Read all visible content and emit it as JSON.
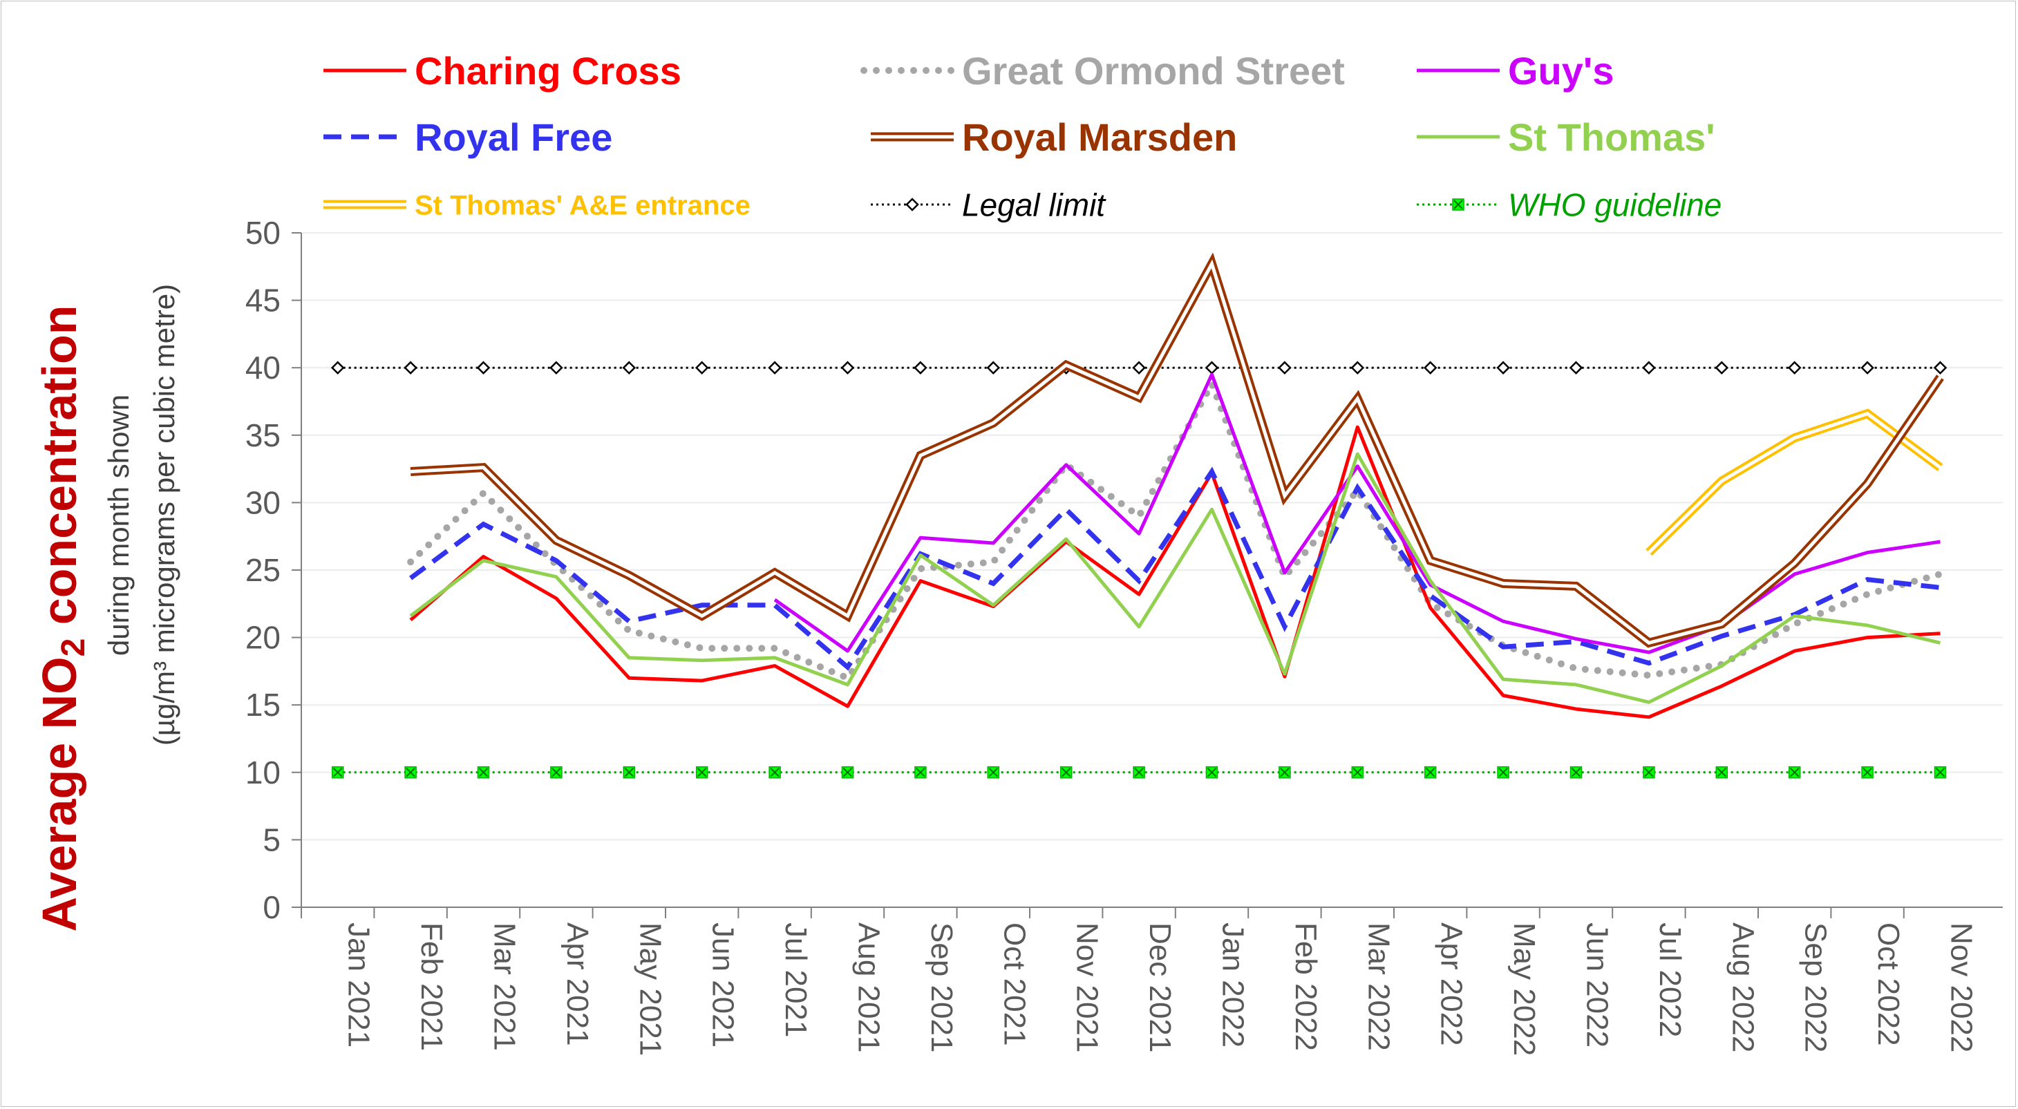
{
  "chart_data": {
    "type": "line",
    "title": "",
    "ylabel_main_prefix": "Average NO",
    "ylabel_main_sub": "2",
    "ylabel_main_suffix": " concentration",
    "ylabel_line2": "during month shown",
    "ylabel_line3": "(µg/m³ micrograms per cubic metre)",
    "ylim": [
      0,
      50
    ],
    "yticks": [
      0,
      5,
      10,
      15,
      20,
      25,
      30,
      35,
      40,
      45,
      50
    ],
    "grid": true,
    "legend_position": "top",
    "categories": [
      "Jan 2021",
      "Feb 2021",
      "Mar 2021",
      "Apr 2021",
      "May 2021",
      "Jun 2021",
      "Jul 2021",
      "Aug 2021",
      "Sep 2021",
      "Oct 2021",
      "Nov 2021",
      "Dec 2021",
      "Jan 2022",
      "Feb 2022",
      "Mar 2022",
      "Apr 2022",
      "May 2022",
      "Jun 2022",
      "Jul 2022",
      "Aug 2022",
      "Sep 2022",
      "Oct 2022",
      "Nov 2022"
    ],
    "series": [
      {
        "name": "Charing Cross",
        "color": "#ff0000",
        "style": "solid",
        "labelColor": "#ff0000",
        "values": [
          null,
          21.3,
          26.0,
          22.9,
          17.0,
          16.8,
          17.9,
          14.9,
          24.2,
          22.3,
          27.1,
          23.2,
          32.2,
          17.1,
          35.6,
          22.2,
          15.7,
          14.7,
          14.1,
          16.4,
          19.0,
          20.0,
          20.3
        ]
      },
      {
        "name": "Great Ormond Street",
        "color": "#a6a6a6",
        "style": "dotted",
        "labelColor": "#a6a6a6",
        "values": [
          null,
          25.6,
          30.7,
          25.4,
          20.5,
          19.2,
          19.2,
          17.0,
          25.1,
          25.6,
          32.8,
          29.0,
          38.8,
          24.5,
          30.9,
          22.5,
          19.4,
          17.7,
          17.2,
          18.0,
          21.0,
          23.2,
          24.7
        ]
      },
      {
        "name": "Guy's",
        "color": "#cc00ff",
        "style": "solid",
        "labelColor": "#cc00ff",
        "values": [
          null,
          null,
          null,
          null,
          null,
          null,
          22.8,
          19.0,
          27.4,
          27.0,
          32.8,
          27.7,
          39.5,
          24.8,
          32.7,
          23.9,
          21.2,
          19.9,
          18.9,
          20.9,
          24.7,
          26.3,
          27.1
        ]
      },
      {
        "name": "Royal Free",
        "color": "#3333ee",
        "style": "dashed",
        "labelColor": "#3333ee",
        "values": [
          null,
          24.4,
          28.4,
          25.7,
          21.2,
          22.4,
          22.4,
          17.8,
          26.2,
          24.0,
          29.5,
          24.2,
          32.3,
          20.8,
          31.1,
          23.1,
          19.3,
          19.7,
          18.1,
          20.1,
          21.7,
          24.3,
          23.7
        ]
      },
      {
        "name": "Royal Marsden",
        "color": "#993300",
        "style": "double",
        "labelColor": "#993300",
        "values": [
          null,
          32.3,
          32.6,
          27.2,
          24.6,
          21.6,
          24.8,
          21.6,
          33.5,
          35.9,
          40.2,
          37.8,
          47.7,
          30.5,
          37.7,
          25.7,
          24.0,
          23.8,
          19.6,
          21.0,
          25.5,
          31.4,
          39.3
        ]
      },
      {
        "name": "St Thomas'",
        "color": "#92d050",
        "style": "solid",
        "labelColor": "#92d050",
        "values": [
          null,
          21.6,
          25.7,
          24.5,
          18.5,
          18.3,
          18.5,
          16.5,
          26.1,
          22.4,
          27.3,
          20.8,
          29.5,
          17.3,
          33.6,
          24.2,
          16.9,
          16.5,
          15.2,
          17.9,
          21.6,
          20.9,
          19.6
        ]
      },
      {
        "name": "St Thomas' A&E entrance",
        "color": "#ffc000",
        "style": "double",
        "labelColor": "#ffc000",
        "values": [
          null,
          null,
          null,
          null,
          null,
          null,
          null,
          null,
          null,
          null,
          null,
          null,
          null,
          null,
          null,
          null,
          null,
          null,
          26.3,
          31.6,
          34.8,
          36.6,
          32.6
        ]
      },
      {
        "name": "Legal limit",
        "color": "#000000",
        "style": "marker-dotted",
        "marker": "diamond",
        "labelColor": "#000000",
        "values": [
          40,
          40,
          40,
          40,
          40,
          40,
          40,
          40,
          40,
          40,
          40,
          40,
          40,
          40,
          40,
          40,
          40,
          40,
          40,
          40,
          40,
          40,
          40
        ]
      },
      {
        "name": "WHO guideline",
        "color": "#00a000",
        "style": "marker-dotted",
        "marker": "x-square",
        "labelColor": "#00a000",
        "values": [
          10,
          10,
          10,
          10,
          10,
          10,
          10,
          10,
          10,
          10,
          10,
          10,
          10,
          10,
          10,
          10,
          10,
          10,
          10,
          10,
          10,
          10,
          10
        ]
      }
    ]
  }
}
